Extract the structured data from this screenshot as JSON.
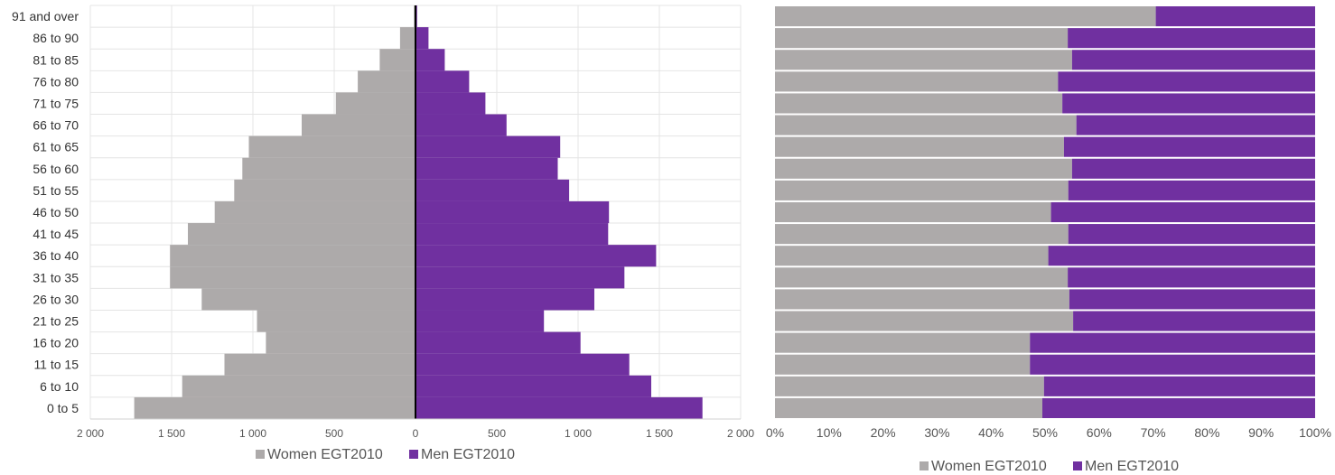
{
  "chart_data": [
    {
      "type": "bar",
      "orientation": "horizontal",
      "categories": [
        "0 to 5",
        "6 to 10",
        "11 to 15",
        "16 to 20",
        "21 to 25",
        "26 to 30",
        "31 to 35",
        "36 to 40",
        "41 to 45",
        "46 to 50",
        "51 to 55",
        "56 to 60",
        "61 to 65",
        "66 to 70",
        "71 to 75",
        "76 to 80",
        "81 to 85",
        "86 to 90",
        "91 and over"
      ],
      "series": [
        {
          "name": "Women EGT2010",
          "color": "#adaaaa",
          "values": [
            1730,
            1435,
            1175,
            920,
            975,
            1315,
            1510,
            1510,
            1400,
            1235,
            1115,
            1065,
            1025,
            700,
            490,
            355,
            220,
            95,
            10
          ]
        },
        {
          "name": "Men EGT2010",
          "color": "#7030a0",
          "values": [
            1765,
            1450,
            1315,
            1015,
            790,
            1100,
            1285,
            1480,
            1185,
            1190,
            945,
            875,
            890,
            560,
            430,
            330,
            180,
            80,
            10
          ]
        }
      ],
      "xlim": [
        -2000,
        2000
      ],
      "xticks": [
        -2000,
        -1500,
        -1000,
        -500,
        0,
        500,
        1000,
        1500,
        2000
      ],
      "xtick_labels": [
        "2 000",
        "1 500",
        "1 000",
        "500",
        "0",
        "500",
        "1 000",
        "1 500",
        "2 000"
      ],
      "legend_position": "bottom",
      "grid": true
    },
    {
      "type": "bar",
      "orientation": "horizontal",
      "stacked": "percent",
      "categories": [
        "0 to 5",
        "6 to 10",
        "11 to 15",
        "16 to 20",
        "21 to 25",
        "26 to 30",
        "31 to 35",
        "36 to 40",
        "41 to 45",
        "46 to 50",
        "51 to 55",
        "56 to 60",
        "61 to 65",
        "66 to 70",
        "71 to 75",
        "76 to 80",
        "81 to 85",
        "86 to 90",
        "91 and over"
      ],
      "series": [
        {
          "name": "Women EGT2010",
          "color": "#adaaaa",
          "values": [
            49.5,
            49.8,
            47.2,
            47.2,
            55.2,
            54.5,
            54.2,
            50.6,
            54.3,
            51.1,
            54.3,
            55.0,
            53.5,
            55.8,
            53.2,
            52.4,
            55.0,
            54.2,
            70.5
          ]
        },
        {
          "name": "Men EGT2010",
          "color": "#7030a0",
          "values": [
            50.5,
            50.2,
            52.8,
            52.8,
            44.8,
            45.5,
            45.8,
            49.4,
            45.7,
            48.9,
            45.7,
            45.0,
            46.5,
            44.2,
            46.8,
            47.6,
            45.0,
            45.8,
            29.5
          ]
        }
      ],
      "xlim": [
        0,
        100
      ],
      "xticks": [
        0,
        10,
        20,
        30,
        40,
        50,
        60,
        70,
        80,
        90,
        100
      ],
      "xtick_labels": [
        "0%",
        "10%",
        "20%",
        "30%",
        "40%",
        "50%",
        "60%",
        "70%",
        "80%",
        "90%",
        "100%"
      ],
      "legend_position": "bottom",
      "grid": false
    }
  ]
}
